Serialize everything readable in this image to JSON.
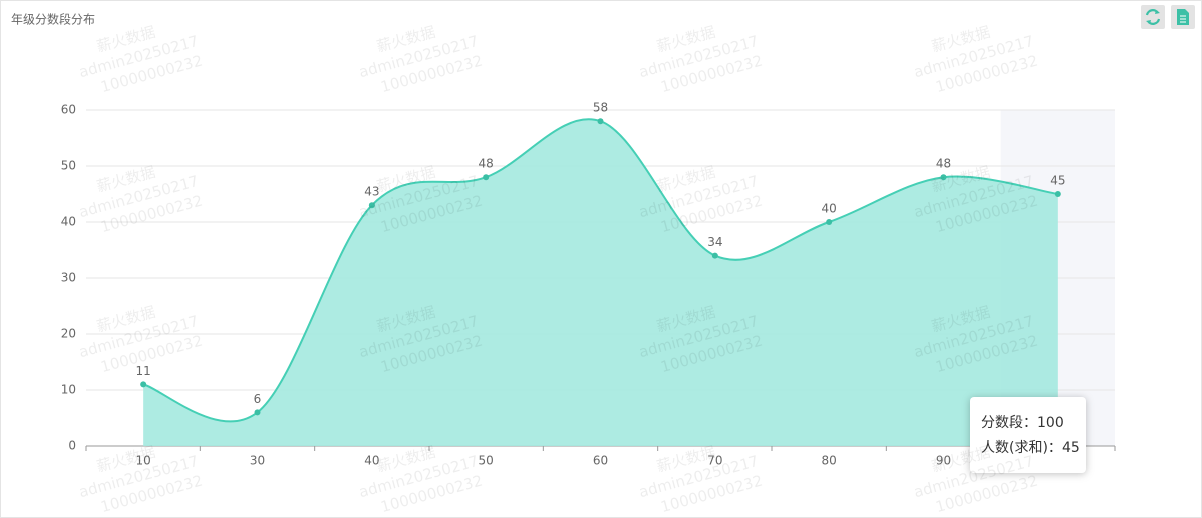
{
  "header": {
    "title": "年级分数段分布"
  },
  "watermark": [
    "薪火数据",
    "admin20250217",
    "10000000232"
  ],
  "chart_data": {
    "type": "area",
    "categories": [
      "10",
      "30",
      "40",
      "50",
      "60",
      "70",
      "80",
      "90",
      "100"
    ],
    "values": [
      11,
      6,
      43,
      48,
      58,
      34,
      40,
      48,
      45
    ],
    "color": "#45cfb5",
    "area_color": "#a4e9df",
    "ylim": [
      0,
      60
    ],
    "yticks": [
      0,
      10,
      20,
      30,
      40,
      50,
      60
    ],
    "grid": true,
    "tooltip": {
      "category_label": "分数段：",
      "value_label": "人数(求和)："
    }
  }
}
